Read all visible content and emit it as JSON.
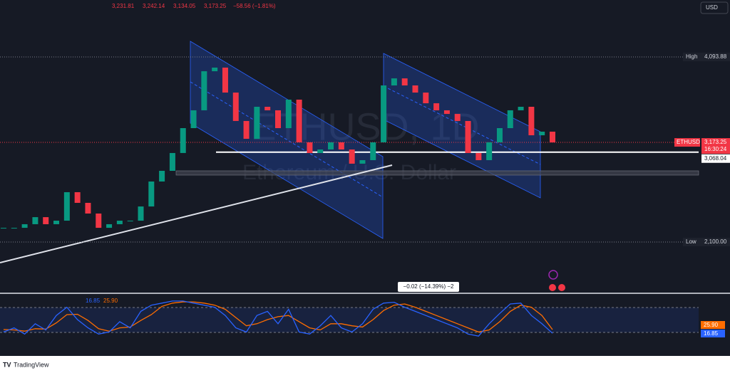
{
  "header": {
    "open": "3,231.81",
    "high": "3,242.14",
    "low": "3,134.05",
    "close": "3,173.25",
    "change": "−58.56 (−1.81%)"
  },
  "currency": "USD",
  "watermark": {
    "symbol": "ETHUSD, 1D",
    "name": "Ethereum / U.S. Dollar"
  },
  "price_scale": {
    "high_label": "High",
    "high": {
      "value": 4093.88,
      "label": "4,093.88"
    },
    "low_label": "Low",
    "low": {
      "value": 2100,
      "label": "2,100.00"
    },
    "symbol": "ETHUSD",
    "last": {
      "value": 3173.25,
      "label": "3,173.25"
    },
    "countdown": "16:30:24",
    "level": {
      "value": 3068.04,
      "label": "3,068.04"
    }
  },
  "closes": [
    2253,
    2253,
    2292,
    2368,
    2292,
    2330,
    2637,
    2522,
    2407,
    2253,
    2292,
    2330,
    2330,
    2483,
    2752,
    2867,
    3059,
    3327,
    3519,
    3940,
    3979,
    3710,
    3404,
    3212,
    3557,
    3519,
    3327,
    3634,
    3174,
    3059,
    3097,
    3174,
    3097,
    2944,
    2982,
    3174,
    3787,
    3863,
    3787,
    3710,
    3595,
    3519,
    3480,
    3404,
    3059,
    2982,
    3174,
    3327,
    3519,
    3557,
    3250,
    3289,
    3173.25
  ],
  "measure": "−0.02 (−14.39%) −2",
  "stoch": {
    "ylim": [
      0,
      100
    ],
    "k": [
      20,
      30,
      15,
      40,
      25,
      60,
      80,
      50,
      30,
      15,
      20,
      45,
      30,
      70,
      85,
      90,
      95,
      95,
      90,
      85,
      80,
      60,
      30,
      20,
      60,
      70,
      40,
      75,
      20,
      15,
      35,
      60,
      30,
      20,
      40,
      75,
      90,
      92,
      80,
      70,
      60,
      50,
      40,
      30,
      15,
      10,
      40,
      65,
      88,
      90,
      60,
      40,
      16.85
    ],
    "d": [
      26,
      25,
      22,
      28,
      27,
      42,
      62,
      63,
      48,
      28,
      22,
      30,
      32,
      48,
      62,
      82,
      90,
      93,
      93,
      90,
      85,
      75,
      55,
      35,
      40,
      50,
      57,
      60,
      45,
      30,
      25,
      40,
      40,
      35,
      32,
      50,
      72,
      85,
      88,
      80,
      70,
      60,
      50,
      40,
      30,
      20,
      25,
      45,
      70,
      85,
      80,
      60,
      25.9
    ],
    "k_label": "16.85",
    "d_label": "25.90",
    "k_color": "#2962ff",
    "d_color": "#ff6d00"
  },
  "footer": "TradingView"
}
